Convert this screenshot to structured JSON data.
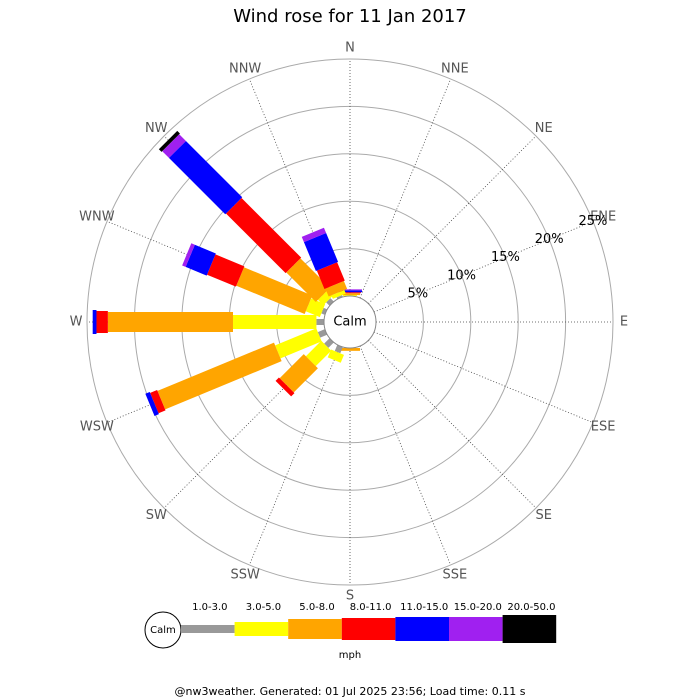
{
  "chart_data": {
    "type": "windrose",
    "title": "Wind rose for 11 Jan 2017",
    "directions": [
      "N",
      "NNE",
      "NE",
      "ENE",
      "E",
      "ESE",
      "SE",
      "SSE",
      "S",
      "SSW",
      "SW",
      "WSW",
      "W",
      "WNW",
      "NW",
      "NNW"
    ],
    "series": [
      {
        "name": "1.0-3.0",
        "color": "#999999",
        "values": [
          0,
          0,
          0,
          0,
          0,
          0,
          0,
          0,
          0,
          0.7,
          0.8,
          0.8,
          0.8,
          0.4,
          0.5,
          0.2
        ]
      },
      {
        "name": "3.0-5.0",
        "color": "#ffff00",
        "values": [
          0.1,
          0,
          0,
          0,
          0,
          0,
          0,
          0,
          0,
          0.9,
          2.3,
          4.7,
          8.8,
          1.6,
          0.8,
          0.4
        ]
      },
      {
        "name": "5.0-8.0",
        "color": "#ffa500",
        "values": [
          0.2,
          0,
          0,
          0,
          0,
          0,
          0,
          0,
          0.3,
          0,
          3.6,
          13.3,
          13.2,
          7.8,
          4.4,
          0.9
        ]
      },
      {
        "name": "8.0-11.0",
        "color": "#ff0000",
        "values": [
          0.1,
          0,
          0,
          0,
          0,
          0,
          0,
          0,
          0,
          0,
          0.5,
          0.8,
          1.2,
          3.3,
          8.9,
          2.1
        ]
      },
      {
        "name": "11.0-15.0",
        "color": "#0000ff",
        "values": [
          0.2,
          0,
          0,
          0,
          0,
          0,
          0,
          0,
          0,
          0,
          0,
          0.5,
          0.4,
          2.4,
          8.4,
          3.3
        ]
      },
      {
        "name": "15.0-20.0",
        "color": "#a020f0",
        "values": [
          0.1,
          0,
          0,
          0,
          0,
          0,
          0,
          0,
          0,
          0,
          0,
          0,
          0,
          0.4,
          1.0,
          0.6
        ]
      },
      {
        "name": "20.0-50.0",
        "color": "#000000",
        "values": [
          0,
          0,
          0,
          0,
          0,
          0,
          0,
          0,
          0,
          0,
          0,
          0,
          0,
          0,
          0.4,
          0
        ]
      }
    ],
    "rlim": [
      0,
      25
    ],
    "rticks": [
      {
        "value": 5,
        "label": "5%"
      },
      {
        "value": 10,
        "label": "10%"
      },
      {
        "value": 15,
        "label": "15%"
      },
      {
        "value": 20,
        "label": "20%"
      },
      {
        "value": 25,
        "label": "25%"
      }
    ],
    "calm_label": "Calm",
    "legend_unit": "mph",
    "footer": "@nw3weather. Generated: 01 Jul 2025 23:56; Load time: 0.11 s"
  }
}
